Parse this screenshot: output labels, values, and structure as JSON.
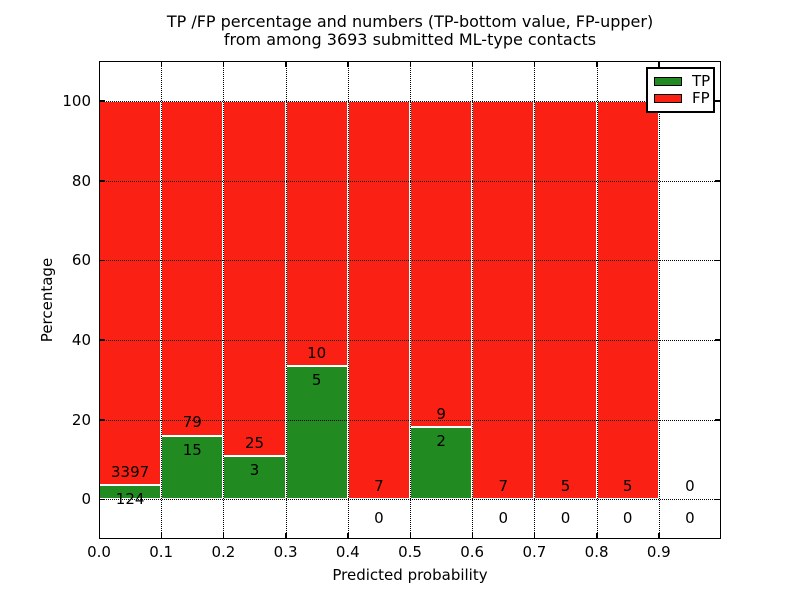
{
  "chart_data": {
    "type": "bar",
    "stacked": true,
    "title_line1": "TP /FP percentage and numbers (TP-bottom value, FP-upper)",
    "title_line2": "from among 3693 submitted ML-type contacts",
    "xlabel": "Predicted probability",
    "ylabel": "Percentage",
    "xlim": [
      0.0,
      1.0
    ],
    "ylim": [
      -10,
      110
    ],
    "bin_edges": [
      0.0,
      0.1,
      0.2,
      0.3,
      0.4,
      0.5,
      0.6,
      0.7,
      0.8,
      0.9,
      1.0
    ],
    "xtick_labels": [
      "0.0",
      "0.1",
      "0.2",
      "0.3",
      "0.4",
      "0.5",
      "0.6",
      "0.7",
      "0.8",
      "0.9"
    ],
    "xtick_values": [
      0.0,
      0.1,
      0.2,
      0.3,
      0.4,
      0.5,
      0.6,
      0.7,
      0.8,
      0.9
    ],
    "ytick_values": [
      0,
      20,
      40,
      60,
      80,
      100
    ],
    "grid": true,
    "grid_style": "dotted",
    "legend_position": "upper right",
    "series": [
      {
        "name": "TP",
        "color": "#218a21",
        "counts": [
          124,
          15,
          3,
          5,
          0,
          2,
          0,
          0,
          0,
          0
        ]
      },
      {
        "name": "FP",
        "color": "#fa2014",
        "counts": [
          3397,
          79,
          25,
          10,
          7,
          9,
          7,
          5,
          5,
          0
        ]
      }
    ],
    "bar_heights_tp_percent": [
      3.52,
      15.96,
      10.71,
      33.33,
      0.0,
      18.18,
      0.0,
      0.0,
      0.0,
      0.0
    ],
    "bar_heights_fp_percent": [
      96.48,
      84.04,
      89.29,
      66.67,
      100.0,
      81.82,
      100.0,
      100.0,
      100.0,
      0.0
    ]
  },
  "colors": {
    "background": "#ffffff",
    "axis": "#000000",
    "bar_edge": "#ffffff",
    "tp": "#218a21",
    "fp": "#fa2014"
  }
}
